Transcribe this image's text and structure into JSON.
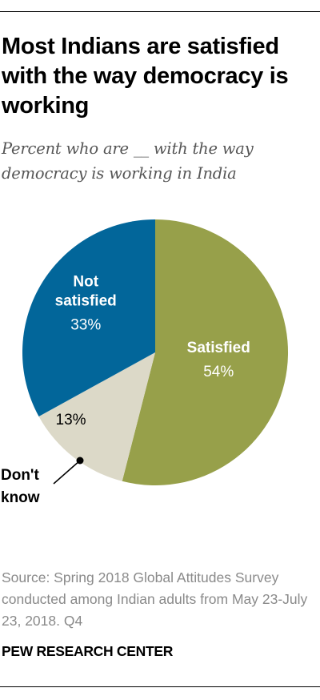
{
  "chart_data": {
    "type": "pie",
    "title": "Most Indians are satisfied with the way democracy is working",
    "subtitle": "Percent who are __ with the way democracy is working in India",
    "slices": [
      {
        "label": "Satisfied",
        "value": 54,
        "value_label": "54%",
        "color": "#97A04A"
      },
      {
        "label": "Don't know",
        "value": 13,
        "value_label": "13%",
        "color": "#DCD9C8"
      },
      {
        "label": "Not satisfied",
        "value": 33,
        "value_label": "33%",
        "color": "#02669A"
      }
    ]
  },
  "source": "Source: Spring 2018 Global Attitudes Survey conducted among Indian adults from May 23-July 23, 2018. Q4",
  "footer": "PEW RESEARCH CENTER"
}
